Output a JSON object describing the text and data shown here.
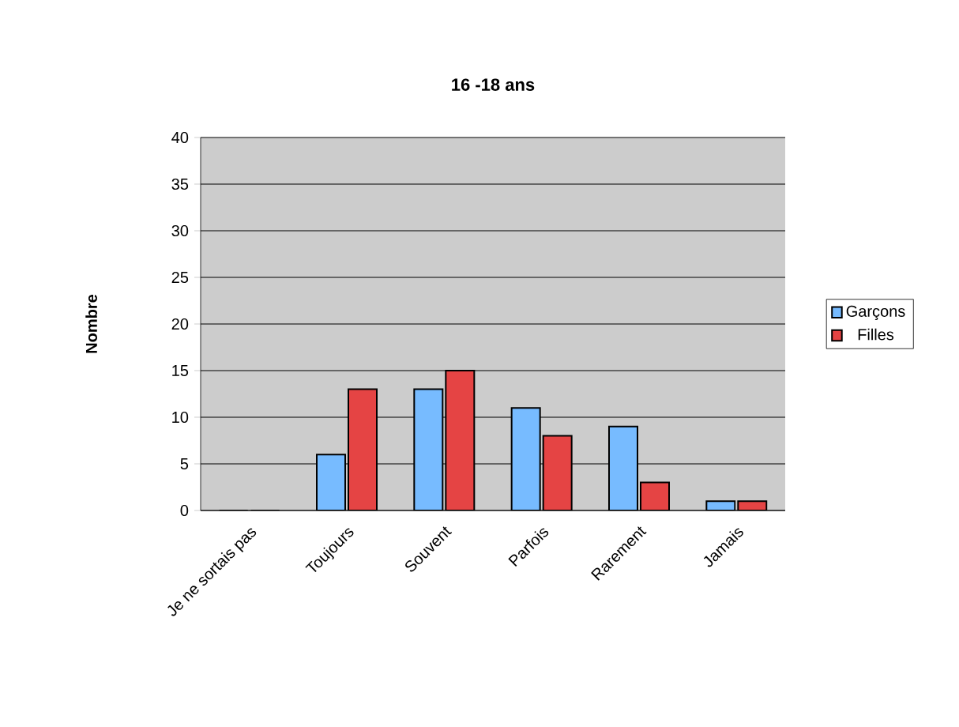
{
  "chart_data": {
    "type": "bar",
    "title": "16 -18 ans",
    "ylabel": "Nombre",
    "categories": [
      "Je ne sortais pas",
      "Toujours",
      "Souvent",
      "Parfois",
      "Rarement",
      "Jamais"
    ],
    "series": [
      {
        "name": "Garçons",
        "color": "#77bbff",
        "values": [
          0,
          6,
          13,
          11,
          9,
          1
        ]
      },
      {
        "name": "Filles",
        "color": "#e54444",
        "values": [
          0,
          13,
          15,
          8,
          3,
          1
        ]
      }
    ],
    "ylim": [
      0,
      40
    ],
    "yticks": [
      0,
      5,
      10,
      15,
      20,
      25,
      30,
      35,
      40
    ],
    "grid": "y",
    "legend": "right"
  }
}
